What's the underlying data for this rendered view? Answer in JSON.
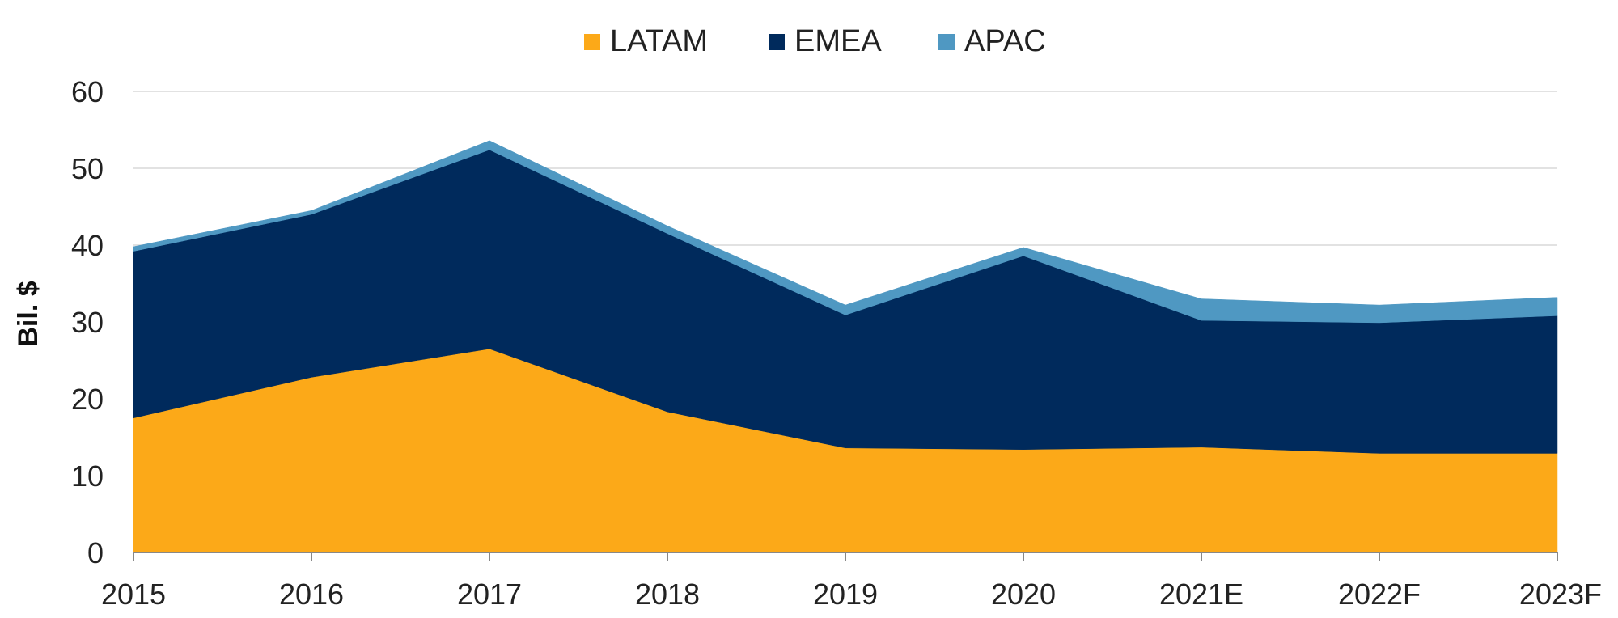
{
  "chart_data": {
    "type": "area",
    "stacked": true,
    "categories": [
      "2015",
      "2016",
      "2017",
      "2018",
      "2019",
      "2020",
      "2021E",
      "2022F",
      "2023F"
    ],
    "series": [
      {
        "name": "LATAM",
        "color": "#FCA918",
        "values": [
          17.5,
          22.8,
          26.5,
          18.3,
          13.6,
          13.4,
          13.7,
          12.9,
          12.9
        ]
      },
      {
        "name": "EMEA",
        "color": "#002A5C",
        "values": [
          21.7,
          21.2,
          25.9,
          23.2,
          17.3,
          25.2,
          16.5,
          17.0,
          17.9
        ]
      },
      {
        "name": "APAC",
        "color": "#4F98C2",
        "values": [
          0.6,
          0.5,
          1.2,
          1.0,
          1.3,
          1.1,
          2.8,
          2.3,
          2.4
        ]
      }
    ],
    "ylabel": "Bil. $",
    "xlabel": "",
    "ylim": [
      0,
      60
    ],
    "yticks": [
      0,
      10,
      20,
      30,
      40,
      50,
      60
    ],
    "grid": true,
    "legend": "top-center"
  }
}
